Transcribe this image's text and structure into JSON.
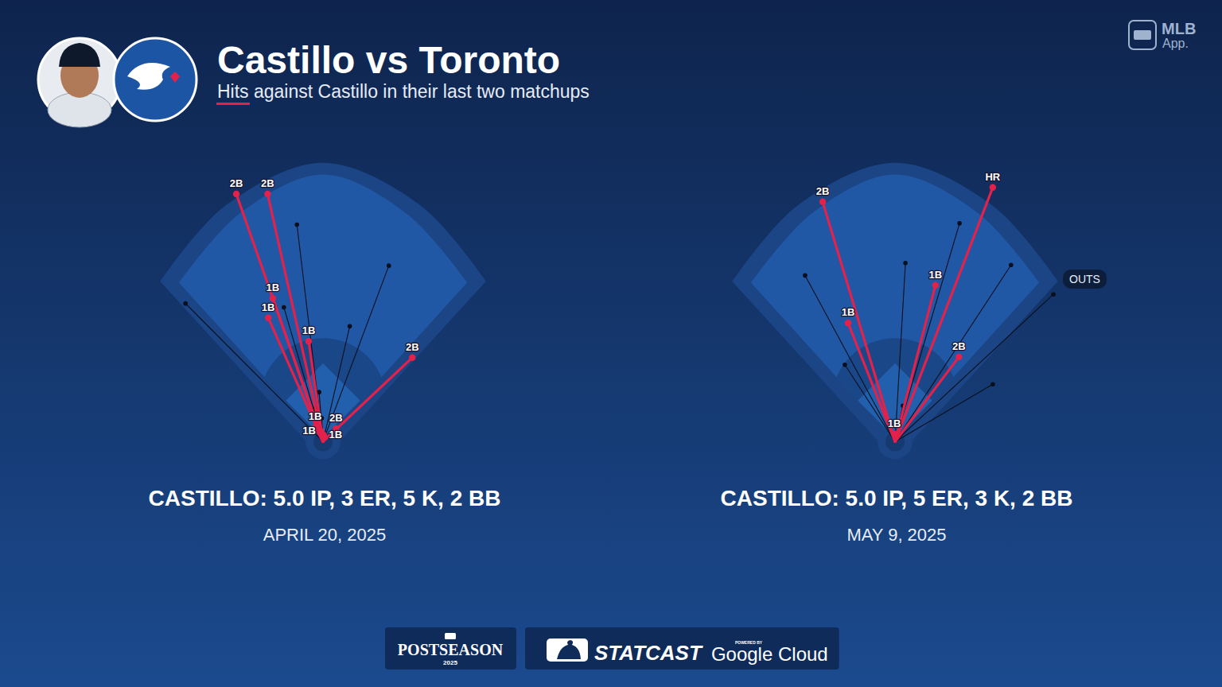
{
  "header": {
    "title": "Castillo vs Toronto",
    "subtitle": "Hits against Castillo in their last two matchups",
    "brand": [
      "MLB",
      "App."
    ]
  },
  "chart_data": [
    {
      "type": "spray",
      "caption": "CASTILLO: 5.0 IP, 3 ER, 5 K, 2 BB",
      "date": "APRIL 20, 2025",
      "xlim": [
        -260,
        260
      ],
      "ylim": [
        -30,
        430
      ],
      "tick_labels": false,
      "hits": {
        "color": "#e3214b",
        "x": [
          -133,
          -85,
          -77,
          -84,
          -22,
          137,
          -12,
          -3,
          1,
          20
        ],
        "y": [
          380,
          380,
          220,
          190,
          154,
          129,
          22,
          16,
          10,
          20
        ],
        "labels": [
          "2B",
          "2B",
          "1B",
          "1B",
          "1B",
          "2B",
          "1B",
          "1B",
          "1B",
          "2B"
        ]
      },
      "outs": {
        "color": "#0a0f1e",
        "x": [
          -40,
          101,
          -211,
          -60,
          41,
          -6,
          -12,
          -2
        ],
        "y": [
          333,
          270,
          212,
          206,
          177,
          76,
          51,
          36
        ]
      }
    },
    {
      "type": "spray",
      "caption": "CASTILLO: 5.0 IP, 5 ER, 3 K, 2 BB",
      "date": "MAY 9, 2025",
      "xlim": [
        -260,
        260
      ],
      "ylim": [
        -30,
        430
      ],
      "tick_labels": false,
      "annotation": "OUTS",
      "hits": {
        "color": "#e3214b",
        "x": [
          -111,
          150,
          62,
          -72,
          98,
          -1
        ],
        "y": [
          368,
          390,
          240,
          182,
          130,
          12
        ],
        "labels": [
          "2B",
          "HR",
          "1B",
          "1B",
          "2B",
          "1B"
        ]
      },
      "outs": {
        "color": "#0a0f1e",
        "x": [
          99,
          16,
          -138,
          178,
          243,
          -77,
          150,
          12
        ],
        "y": [
          335,
          274,
          255,
          271,
          226,
          118,
          88,
          55
        ]
      }
    }
  ],
  "footer": {
    "postseason": "POSTSEASON",
    "year": "2025",
    "statcast": "STATCAST",
    "powered_by": "POWERED BY",
    "cloud": "Google Cloud"
  }
}
